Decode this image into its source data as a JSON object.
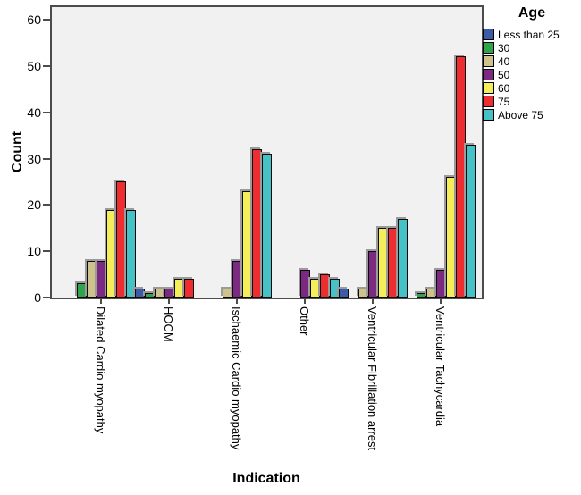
{
  "chart_data": {
    "type": "bar",
    "grouping": "clustered",
    "title": "",
    "xlabel": "Indication",
    "ylabel": "Count",
    "ylim": [
      0,
      62.7
    ],
    "yticks": [
      0,
      10,
      20,
      30,
      40,
      50,
      60
    ],
    "grid": false,
    "legend": {
      "title": "Age",
      "position": "right-top"
    },
    "categories": [
      "Dilated Cardio myopathy",
      "HOCM",
      "Ischaemic Cardio myopathy",
      "Other",
      "Ventricular Fibrillation arrest",
      "Ventricular Tachycardia"
    ],
    "series": [
      {
        "name": "Less than 25",
        "color": "#3c5ba6",
        "values": [
          0,
          2,
          0,
          0,
          2,
          0
        ]
      },
      {
        "name": "30",
        "color": "#2fa44b",
        "values": [
          3,
          1,
          0,
          0,
          0,
          1
        ]
      },
      {
        "name": "40",
        "color": "#cdc38b",
        "values": [
          8,
          2,
          2,
          0,
          2,
          2
        ]
      },
      {
        "name": "50",
        "color": "#7c2981",
        "values": [
          8,
          2,
          8,
          6,
          10,
          6
        ]
      },
      {
        "name": "60",
        "color": "#f3ee59",
        "values": [
          19,
          4,
          23,
          4,
          15,
          26
        ]
      },
      {
        "name": "75",
        "color": "#ee2d31",
        "values": [
          25,
          4,
          32,
          5,
          15,
          52
        ]
      },
      {
        "name": "Above 75",
        "color": "#46c1c6",
        "values": [
          19,
          0,
          31,
          4,
          17,
          33
        ]
      }
    ]
  },
  "styles": {
    "plot_background": "#f1f1f1",
    "axis_color": "#4c4c4c",
    "bar_outline": "#0a0a0a",
    "bar_shadow": "#9b9b9b",
    "text_color": "#000000"
  }
}
